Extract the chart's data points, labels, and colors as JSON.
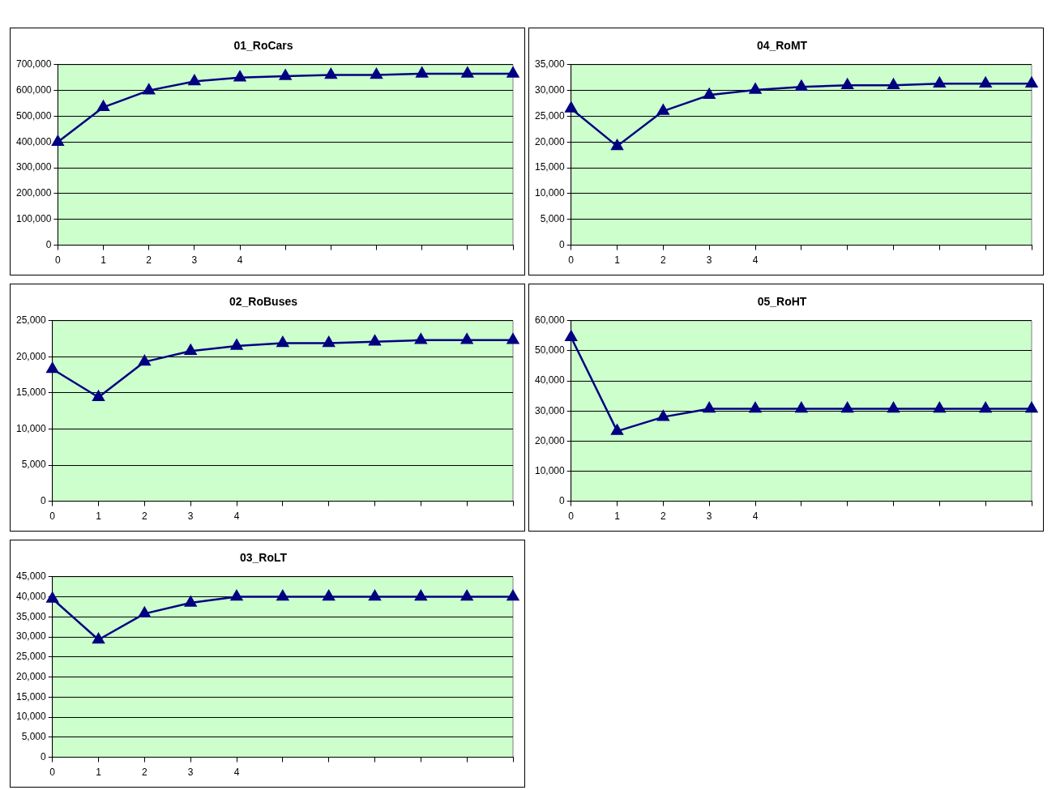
{
  "chart_data": [
    {
      "type": "line",
      "title": "01_RoCars",
      "categories": [
        "0",
        "1",
        "2",
        "3",
        "4",
        null,
        null,
        null,
        null,
        null,
        null
      ],
      "series": [
        {
          "color": "#000080",
          "values": [
            400000,
            535000,
            600000,
            635000,
            650000,
            655000,
            660000,
            660000,
            665000,
            665000,
            665000
          ]
        }
      ],
      "ylim": [
        0,
        700000
      ],
      "yticks": [
        {
          "value": 0,
          "label": "0"
        },
        {
          "value": 100000,
          "label": "100,000"
        },
        {
          "value": 200000,
          "label": "200,000"
        },
        {
          "value": 300000,
          "label": "300,000"
        },
        {
          "value": 400000,
          "label": "400,000"
        },
        {
          "value": 500000,
          "label": "500,000"
        },
        {
          "value": 600000,
          "label": "600,000"
        },
        {
          "value": 700000,
          "label": "700,000"
        }
      ],
      "grid": "y",
      "marker": "triangle"
    },
    {
      "type": "line",
      "title": "04_RoMT",
      "categories": [
        "0",
        "1",
        "2",
        "3",
        "4",
        null,
        null,
        null,
        null,
        null,
        null
      ],
      "series": [
        {
          "color": "#000080",
          "values": [
            26500,
            19200,
            26000,
            29100,
            30100,
            30700,
            31000,
            31000,
            31300,
            31300,
            31300
          ]
        }
      ],
      "ylim": [
        0,
        35000
      ],
      "yticks": [
        {
          "value": 0,
          "label": "0"
        },
        {
          "value": 5000,
          "label": "5,000"
        },
        {
          "value": 10000,
          "label": "10,000"
        },
        {
          "value": 15000,
          "label": "15,000"
        },
        {
          "value": 20000,
          "label": "20,000"
        },
        {
          "value": 25000,
          "label": "25,000"
        },
        {
          "value": 30000,
          "label": "30,000"
        },
        {
          "value": 35000,
          "label": "35,000"
        }
      ],
      "grid": "y",
      "marker": "triangle"
    },
    {
      "type": "line",
      "title": "02_RoBuses",
      "categories": [
        "0",
        "1",
        "2",
        "3",
        "4",
        null,
        null,
        null,
        null,
        null,
        null
      ],
      "series": [
        {
          "color": "#000080",
          "values": [
            18300,
            14400,
            19300,
            20800,
            21500,
            21900,
            21900,
            22100,
            22300,
            22300,
            22300
          ]
        }
      ],
      "ylim": [
        0,
        25000
      ],
      "yticks": [
        {
          "value": 0,
          "label": "0"
        },
        {
          "value": 5000,
          "label": "5,000"
        },
        {
          "value": 10000,
          "label": "10,000"
        },
        {
          "value": 15000,
          "label": "15,000"
        },
        {
          "value": 20000,
          "label": "20,000"
        },
        {
          "value": 25000,
          "label": "25,000"
        }
      ],
      "grid": "y",
      "marker": "triangle"
    },
    {
      "type": "line",
      "title": "05_RoHT",
      "categories": [
        "0",
        "1",
        "2",
        "3",
        "4",
        null,
        null,
        null,
        null,
        null,
        null
      ],
      "series": [
        {
          "color": "#000080",
          "values": [
            54500,
            23300,
            28000,
            30700,
            30700,
            30700,
            30700,
            30700,
            30700,
            30700,
            30700
          ]
        }
      ],
      "ylim": [
        0,
        60000
      ],
      "yticks": [
        {
          "value": 0,
          "label": "0"
        },
        {
          "value": 10000,
          "label": "10,000"
        },
        {
          "value": 20000,
          "label": "20,000"
        },
        {
          "value": 30000,
          "label": "30,000"
        },
        {
          "value": 40000,
          "label": "40,000"
        },
        {
          "value": 50000,
          "label": "50,000"
        },
        {
          "value": 60000,
          "label": "60,000"
        }
      ],
      "grid": "y",
      "marker": "triangle"
    },
    {
      "type": "line",
      "title": "03_RoLT",
      "categories": [
        "0",
        "1",
        "2",
        "3",
        "4",
        null,
        null,
        null,
        null,
        null,
        null
      ],
      "series": [
        {
          "color": "#000080",
          "values": [
            39500,
            29300,
            35800,
            38500,
            40000,
            40000,
            40000,
            40000,
            40000,
            40000,
            40000
          ]
        }
      ],
      "ylim": [
        0,
        45000
      ],
      "yticks": [
        {
          "value": 0,
          "label": "0"
        },
        {
          "value": 5000,
          "label": "5,000"
        },
        {
          "value": 10000,
          "label": "10,000"
        },
        {
          "value": 15000,
          "label": "15,000"
        },
        {
          "value": 20000,
          "label": "20,000"
        },
        {
          "value": 25000,
          "label": "25,000"
        },
        {
          "value": 30000,
          "label": "30,000"
        },
        {
          "value": 35000,
          "label": "35,000"
        },
        {
          "value": 40000,
          "label": "40,000"
        },
        {
          "value": 45000,
          "label": "45,000"
        }
      ],
      "grid": "y",
      "marker": "triangle"
    }
  ]
}
